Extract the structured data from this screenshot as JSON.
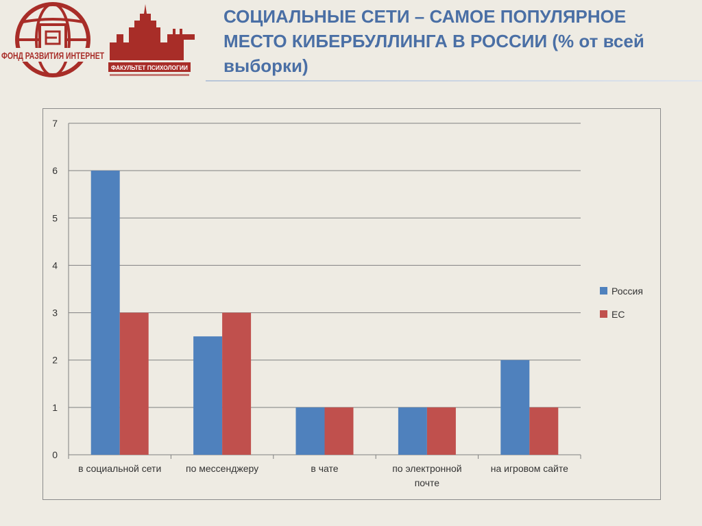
{
  "slide": {
    "title": "СОЦИАЛЬНЫЕ СЕТИ – САМОЕ ПОПУЛЯРНОЕ МЕСТО КИБЕРБУЛЛИНГА В РОССИИ (% от всей выборки)",
    "title_lines": [
      "СОЦИАЛЬНЫЕ СЕТИ – САМОЕ ПОПУЛЯРНОЕ",
      "МЕСТО КИБЕРБУЛЛИНГА В РОССИИ (% от всей",
      "выборки)"
    ]
  },
  "logos": {
    "fund_text": "ФОНД РАЗВИТИЯ ИНТЕРНЕТ",
    "faculty_text": "ФАКУЛЬТЕТ ПСИХОЛОГИИ"
  },
  "colors": {
    "title": "#4a6fa5",
    "logo_red": "#a82d28",
    "russia": "#4f81bd",
    "eu": "#c0504d",
    "grid": "#7f7f7f"
  },
  "chart_data": {
    "type": "bar",
    "title": "",
    "xlabel": "",
    "ylabel": "",
    "categories": [
      "в социальной сети",
      "по мессенджеру",
      "в чате",
      "по электронной почте",
      "на игровом сайте"
    ],
    "category_lines": [
      [
        "в социальной сети"
      ],
      [
        "по мессенджеру"
      ],
      [
        "в чате"
      ],
      [
        "по электронной",
        "почте"
      ],
      [
        "на игровом сайте"
      ]
    ],
    "series": [
      {
        "name": "Россия",
        "values": [
          6,
          2.5,
          1,
          1,
          2
        ],
        "color": "#4f81bd"
      },
      {
        "name": "ЕС",
        "values": [
          3,
          3,
          1,
          1,
          1
        ],
        "color": "#c0504d"
      }
    ],
    "ylim": [
      0,
      7
    ],
    "yticks": [
      0,
      1,
      2,
      3,
      4,
      5,
      6,
      7
    ],
    "grid": true,
    "legend": "right"
  }
}
